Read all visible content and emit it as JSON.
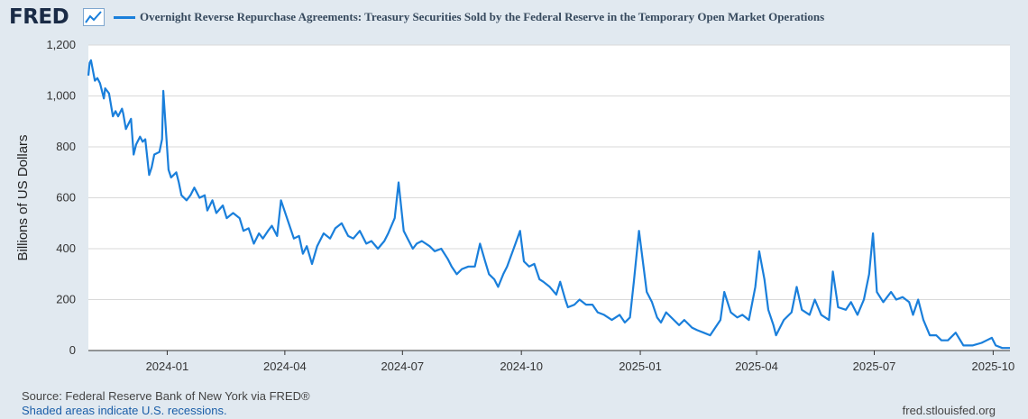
{
  "header": {
    "logo": "FRED",
    "logo_icon": "line-chart-icon",
    "title": "Overnight Reverse Repurchase Agreements: Treasury Securities Sold by the Federal Reserve in the Temporary Open Market Operations"
  },
  "footer": {
    "source": "Source: Federal Reserve Bank of New York via FRED®",
    "recessions": "Shaded areas indicate U.S. recessions.",
    "site": "fred.stlouisfed.org"
  },
  "colors": {
    "series": "#1a7fdb",
    "background": "#e1e9f0",
    "plot": "#ffffff"
  },
  "chart_data": {
    "type": "line",
    "title": "Overnight Reverse Repurchase Agreements: Treasury Securities Sold by the Federal Reserve in the Temporary Open Market Operations",
    "ylabel": "Billions of US Dollars",
    "xlabel": "",
    "ylim": [
      0,
      1200
    ],
    "xlim": [
      "2023-11-01",
      "2025-10-14"
    ],
    "grid": true,
    "legend": "top",
    "yticks": [
      0,
      200,
      400,
      600,
      800,
      1000,
      1200
    ],
    "ytick_labels": [
      "0",
      "200",
      "400",
      "600",
      "800",
      "1,000",
      "1,200"
    ],
    "xticks": [
      "2024-01",
      "2024-04",
      "2024-07",
      "2024-10",
      "2025-01",
      "2025-04",
      "2025-07",
      "2025-10"
    ],
    "series": [
      {
        "values": [
          [
            "2023-11-01",
            1080
          ],
          [
            "2023-11-02",
            1130
          ],
          [
            "2023-11-03",
            1140
          ],
          [
            "2023-11-06",
            1060
          ],
          [
            "2023-11-08",
            1070
          ],
          [
            "2023-11-10",
            1050
          ],
          [
            "2023-11-13",
            990
          ],
          [
            "2023-11-14",
            1030
          ],
          [
            "2023-11-17",
            1010
          ],
          [
            "2023-11-20",
            920
          ],
          [
            "2023-11-22",
            940
          ],
          [
            "2023-11-24",
            920
          ],
          [
            "2023-11-27",
            950
          ],
          [
            "2023-11-28",
            930
          ],
          [
            "2023-11-30",
            870
          ],
          [
            "2023-12-01",
            880
          ],
          [
            "2023-12-04",
            910
          ],
          [
            "2023-12-06",
            770
          ],
          [
            "2023-12-08",
            810
          ],
          [
            "2023-12-11",
            840
          ],
          [
            "2023-12-13",
            820
          ],
          [
            "2023-12-15",
            830
          ],
          [
            "2023-12-18",
            690
          ],
          [
            "2023-12-20",
            720
          ],
          [
            "2023-12-22",
            770
          ],
          [
            "2023-12-26",
            780
          ],
          [
            "2023-12-28",
            830
          ],
          [
            "2023-12-29",
            1020
          ],
          [
            "2024-01-02",
            710
          ],
          [
            "2024-01-04",
            680
          ],
          [
            "2024-01-08",
            700
          ],
          [
            "2024-01-10",
            660
          ],
          [
            "2024-01-12",
            610
          ],
          [
            "2024-01-16",
            590
          ],
          [
            "2024-01-19",
            610
          ],
          [
            "2024-01-22",
            640
          ],
          [
            "2024-01-26",
            600
          ],
          [
            "2024-01-30",
            610
          ],
          [
            "2024-02-01",
            550
          ],
          [
            "2024-02-05",
            590
          ],
          [
            "2024-02-08",
            540
          ],
          [
            "2024-02-13",
            570
          ],
          [
            "2024-02-16",
            520
          ],
          [
            "2024-02-21",
            540
          ],
          [
            "2024-02-26",
            520
          ],
          [
            "2024-02-29",
            470
          ],
          [
            "2024-03-04",
            480
          ],
          [
            "2024-03-08",
            420
          ],
          [
            "2024-03-12",
            460
          ],
          [
            "2024-03-15",
            440
          ],
          [
            "2024-03-19",
            470
          ],
          [
            "2024-03-22",
            490
          ],
          [
            "2024-03-26",
            450
          ],
          [
            "2024-03-29",
            590
          ],
          [
            "2024-04-08",
            440
          ],
          [
            "2024-04-12",
            450
          ],
          [
            "2024-04-15",
            380
          ],
          [
            "2024-04-18",
            410
          ],
          [
            "2024-04-22",
            340
          ],
          [
            "2024-04-26",
            410
          ],
          [
            "2024-05-01",
            460
          ],
          [
            "2024-05-06",
            440
          ],
          [
            "2024-05-10",
            480
          ],
          [
            "2024-05-15",
            500
          ],
          [
            "2024-05-20",
            450
          ],
          [
            "2024-05-24",
            440
          ],
          [
            "2024-05-29",
            470
          ],
          [
            "2024-06-03",
            420
          ],
          [
            "2024-06-07",
            430
          ],
          [
            "2024-06-12",
            400
          ],
          [
            "2024-06-17",
            430
          ],
          [
            "2024-06-20",
            460
          ],
          [
            "2024-06-25",
            520
          ],
          [
            "2024-06-28",
            660
          ],
          [
            "2024-07-02",
            470
          ],
          [
            "2024-07-05",
            440
          ],
          [
            "2024-07-09",
            400
          ],
          [
            "2024-07-12",
            420
          ],
          [
            "2024-07-16",
            430
          ],
          [
            "2024-07-22",
            410
          ],
          [
            "2024-07-26",
            390
          ],
          [
            "2024-07-31",
            400
          ],
          [
            "2024-08-05",
            360
          ],
          [
            "2024-08-08",
            330
          ],
          [
            "2024-08-12",
            300
          ],
          [
            "2024-08-16",
            320
          ],
          [
            "2024-08-21",
            330
          ],
          [
            "2024-08-26",
            330
          ],
          [
            "2024-08-30",
            420
          ],
          [
            "2024-09-03",
            350
          ],
          [
            "2024-09-06",
            300
          ],
          [
            "2024-09-10",
            280
          ],
          [
            "2024-09-13",
            250
          ],
          [
            "2024-09-17",
            300
          ],
          [
            "2024-09-20",
            330
          ],
          [
            "2024-09-25",
            400
          ],
          [
            "2024-09-30",
            470
          ],
          [
            "2024-10-03",
            350
          ],
          [
            "2024-10-07",
            330
          ],
          [
            "2024-10-11",
            340
          ],
          [
            "2024-10-15",
            280
          ],
          [
            "2024-10-18",
            270
          ],
          [
            "2024-10-23",
            250
          ],
          [
            "2024-10-28",
            220
          ],
          [
            "2024-10-31",
            270
          ],
          [
            "2024-11-04",
            200
          ],
          [
            "2024-11-06",
            170
          ],
          [
            "2024-11-11",
            180
          ],
          [
            "2024-11-15",
            200
          ],
          [
            "2024-11-20",
            180
          ],
          [
            "2024-11-25",
            180
          ],
          [
            "2024-11-29",
            150
          ],
          [
            "2024-12-04",
            140
          ],
          [
            "2024-12-10",
            120
          ],
          [
            "2024-12-16",
            140
          ],
          [
            "2024-12-20",
            110
          ],
          [
            "2024-12-24",
            130
          ],
          [
            "2024-12-27",
            270
          ],
          [
            "2024-12-31",
            470
          ],
          [
            "2025-01-06",
            230
          ],
          [
            "2025-01-10",
            190
          ],
          [
            "2025-01-14",
            130
          ],
          [
            "2025-01-17",
            110
          ],
          [
            "2025-01-21",
            150
          ],
          [
            "2025-01-27",
            120
          ],
          [
            "2025-01-31",
            100
          ],
          [
            "2025-02-04",
            120
          ],
          [
            "2025-02-10",
            90
          ],
          [
            "2025-02-14",
            80
          ],
          [
            "2025-02-19",
            70
          ],
          [
            "2025-02-24",
            60
          ],
          [
            "2025-02-28",
            90
          ],
          [
            "2025-03-04",
            120
          ],
          [
            "2025-03-07",
            230
          ],
          [
            "2025-03-12",
            150
          ],
          [
            "2025-03-17",
            130
          ],
          [
            "2025-03-21",
            140
          ],
          [
            "2025-03-26",
            120
          ],
          [
            "2025-03-31",
            250
          ],
          [
            "2025-04-03",
            390
          ],
          [
            "2025-04-07",
            280
          ],
          [
            "2025-04-10",
            160
          ],
          [
            "2025-04-14",
            100
          ],
          [
            "2025-04-16",
            60
          ],
          [
            "2025-04-22",
            120
          ],
          [
            "2025-04-28",
            150
          ],
          [
            "2025-05-02",
            250
          ],
          [
            "2025-05-06",
            160
          ],
          [
            "2025-05-12",
            140
          ],
          [
            "2025-05-16",
            200
          ],
          [
            "2025-05-21",
            140
          ],
          [
            "2025-05-27",
            120
          ],
          [
            "2025-05-30",
            310
          ],
          [
            "2025-06-03",
            170
          ],
          [
            "2025-06-09",
            160
          ],
          [
            "2025-06-13",
            190
          ],
          [
            "2025-06-18",
            140
          ],
          [
            "2025-06-23",
            200
          ],
          [
            "2025-06-27",
            300
          ],
          [
            "2025-06-30",
            460
          ],
          [
            "2025-07-03",
            230
          ],
          [
            "2025-07-08",
            190
          ],
          [
            "2025-07-14",
            230
          ],
          [
            "2025-07-18",
            200
          ],
          [
            "2025-07-23",
            210
          ],
          [
            "2025-07-28",
            190
          ],
          [
            "2025-07-31",
            140
          ],
          [
            "2025-08-04",
            200
          ],
          [
            "2025-08-08",
            120
          ],
          [
            "2025-08-13",
            60
          ],
          [
            "2025-08-18",
            60
          ],
          [
            "2025-08-22",
            40
          ],
          [
            "2025-08-27",
            40
          ],
          [
            "2025-09-02",
            70
          ],
          [
            "2025-09-08",
            20
          ],
          [
            "2025-09-15",
            20
          ],
          [
            "2025-09-22",
            30
          ],
          [
            "2025-09-26",
            40
          ],
          [
            "2025-09-30",
            50
          ],
          [
            "2025-10-03",
            20
          ],
          [
            "2025-10-08",
            10
          ],
          [
            "2025-10-14",
            10
          ]
        ]
      }
    ]
  }
}
